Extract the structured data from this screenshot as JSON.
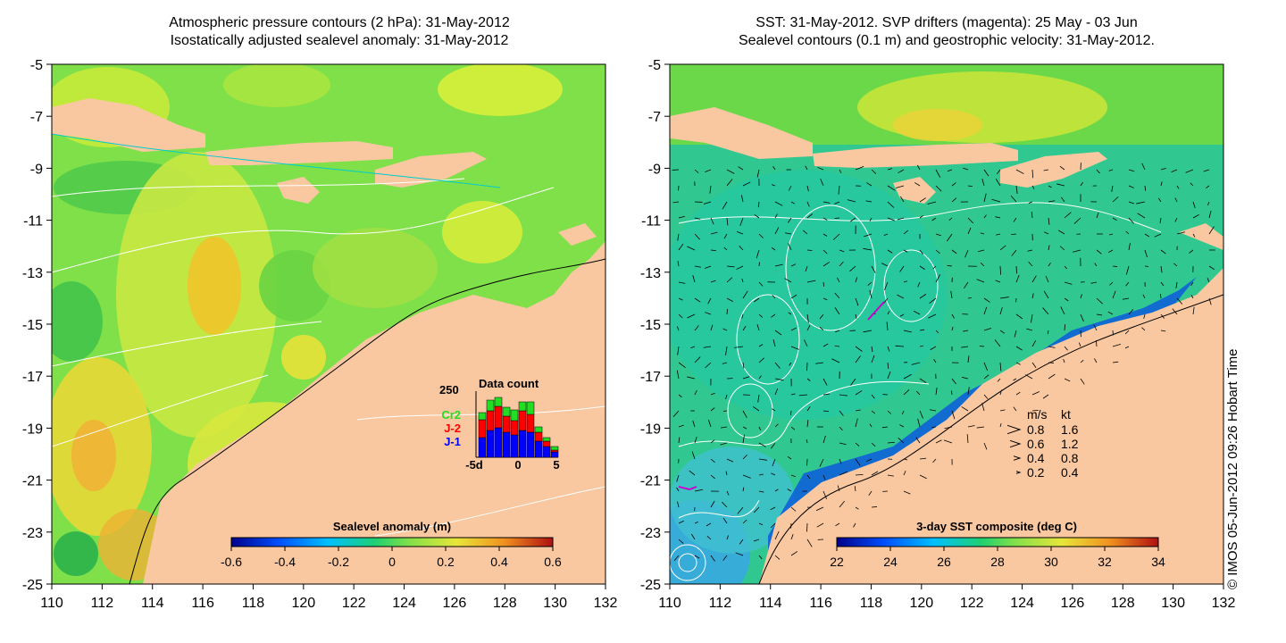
{
  "left_panel": {
    "title_line1": "Atmospheric pressure contours (2 hPa): 31-May-2012",
    "title_line2": "Isostatically adjusted sealevel anomaly: 31-May-2012",
    "colorbar": {
      "label": "Sealevel anomaly (m)",
      "ticks": [
        "-0.6",
        "-0.4",
        "-0.2",
        "0",
        "0.2",
        "0.4",
        "0.6"
      ]
    },
    "data_count": {
      "title": "Data count",
      "y_max_label": "250",
      "x_ticks": [
        "-5d",
        "0",
        "5"
      ],
      "legend": [
        "Cr2",
        "J-2",
        "J-1"
      ],
      "legend_colors": [
        "#22dd22",
        "#ff0000",
        "#0000ff"
      ]
    }
  },
  "right_panel": {
    "title_line1": "SST: 31-May-2012. SVP drifters (magenta): 25 May - 03 Jun",
    "title_line2": "Sealevel contours (0.1 m) and geostrophic velocity: 31-May-2012.",
    "colorbar": {
      "label": "3-day SST composite (deg C)",
      "ticks": [
        "22",
        "24",
        "26",
        "28",
        "30",
        "32",
        "34"
      ]
    },
    "velocity_legend": {
      "header_ms": "m/s",
      "header_kt": "kt",
      "rows": [
        {
          "ms": "0.8",
          "kt": "1.6"
        },
        {
          "ms": "0.6",
          "kt": "1.2"
        },
        {
          "ms": "0.4",
          "kt": "0.8"
        },
        {
          "ms": "0.2",
          "kt": "0.4"
        }
      ]
    }
  },
  "axes": {
    "y_ticks": [
      "-5",
      "-7",
      "-9",
      "-11",
      "-13",
      "-15",
      "-17",
      "-19",
      "-21",
      "-23",
      "-25"
    ],
    "x_ticks": [
      "110",
      "112",
      "114",
      "116",
      "118",
      "120",
      "122",
      "124",
      "126",
      "128",
      "130",
      "132"
    ]
  },
  "credit": "© IMOS 05-Jun-2012 09:26 Hobart Time",
  "colors": {
    "land": "#f9c8a0",
    "ocean_sla": "#7fe04a",
    "ocean_sst": "#33cc88",
    "contour": "#ffffff"
  }
}
